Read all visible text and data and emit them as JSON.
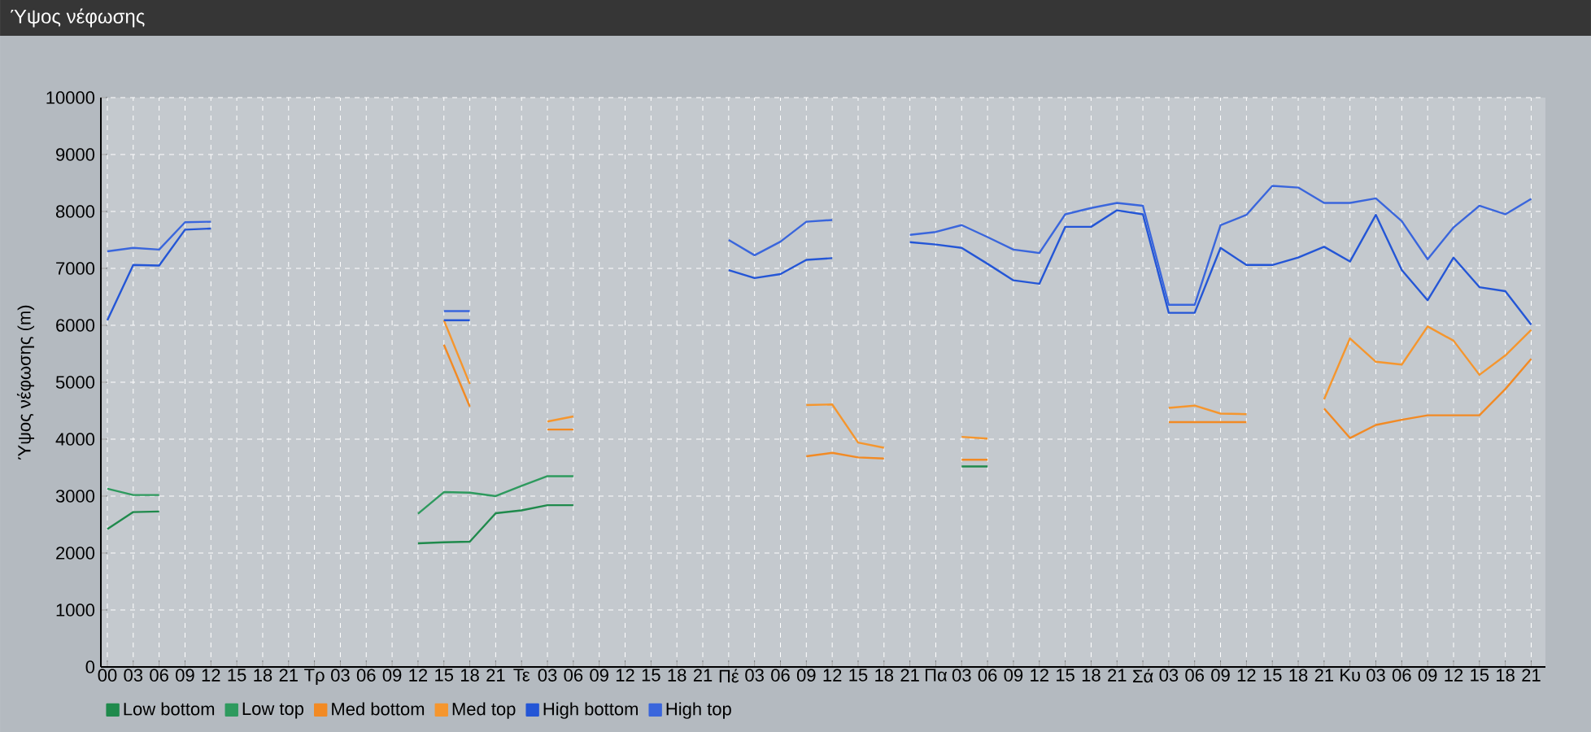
{
  "chart_data": {
    "type": "line",
    "title": "Ύψος νέφωσης",
    "ylabel": "Ύψος νέφωσης (m)",
    "categories": [
      "00",
      "03",
      "06",
      "09",
      "12",
      "15",
      "18",
      "21",
      "Τρ",
      "03",
      "06",
      "09",
      "12",
      "15",
      "18",
      "21",
      "Τε",
      "03",
      "06",
      "09",
      "12",
      "15",
      "18",
      "21",
      "Πέ",
      "03",
      "06",
      "09",
      "12",
      "15",
      "18",
      "21",
      "Πα",
      "03",
      "06",
      "09",
      "12",
      "15",
      "18",
      "21",
      "Σά",
      "03",
      "06",
      "09",
      "12",
      "15",
      "18",
      "21",
      "Κυ",
      "03",
      "06",
      "09",
      "12",
      "15",
      "18",
      "21"
    ],
    "ylim": [
      0,
      10000
    ],
    "yticks": [
      0,
      1000,
      2000,
      3000,
      4000,
      5000,
      6000,
      7000,
      8000,
      9000,
      10000
    ],
    "grid": true,
    "legend": "bottom left",
    "line_style": "solid",
    "series": [
      {
        "name": "Low bottom",
        "color": "#1f8a4c",
        "values": [
          2420,
          2720,
          2730,
          null,
          null,
          null,
          null,
          null,
          null,
          null,
          null,
          null,
          2170,
          2190,
          2200,
          2700,
          2750,
          2840,
          2840,
          null,
          null,
          null,
          null,
          null,
          null,
          null,
          null,
          null,
          null,
          null,
          null,
          null,
          null,
          3520,
          3520,
          null,
          null,
          null,
          null,
          null,
          null,
          null,
          null,
          null,
          null,
          null,
          null,
          null,
          null,
          null,
          null,
          null,
          null,
          null,
          null,
          null
        ]
      },
      {
        "name": "Low top",
        "color": "#2e9a5e",
        "values": [
          3130,
          3020,
          3020,
          null,
          null,
          null,
          null,
          null,
          null,
          null,
          null,
          null,
          2690,
          3070,
          3060,
          3000,
          3180,
          3350,
          3350,
          null,
          null,
          null,
          null,
          null,
          null,
          null,
          null,
          null,
          null,
          null,
          null,
          null,
          null,
          null,
          null,
          null,
          null,
          null,
          null,
          null,
          null,
          null,
          null,
          null,
          null,
          null,
          null,
          null,
          null,
          null,
          null,
          null,
          null,
          null,
          null,
          null
        ]
      },
      {
        "name": "Med bottom",
        "color": "#f28a24",
        "values": [
          null,
          null,
          null,
          null,
          null,
          null,
          null,
          null,
          null,
          null,
          null,
          null,
          null,
          5660,
          4570,
          null,
          null,
          4170,
          4170,
          null,
          null,
          null,
          null,
          null,
          null,
          null,
          null,
          3700,
          3760,
          3680,
          3660,
          null,
          null,
          3640,
          3640,
          null,
          null,
          null,
          null,
          null,
          null,
          4300,
          4300,
          4300,
          4300,
          null,
          null,
          4540,
          4020,
          4250,
          4340,
          4420,
          4420,
          4420,
          4880,
          5410
        ]
      },
      {
        "name": "Med top",
        "color": "#f5962e",
        "values": [
          null,
          null,
          null,
          null,
          null,
          null,
          null,
          null,
          null,
          null,
          null,
          null,
          null,
          6090,
          4970,
          null,
          null,
          4310,
          4400,
          null,
          null,
          null,
          null,
          null,
          null,
          null,
          null,
          4600,
          4610,
          3940,
          3850,
          null,
          null,
          4040,
          4010,
          null,
          null,
          null,
          null,
          null,
          null,
          4550,
          4590,
          4450,
          4440,
          null,
          null,
          4700,
          5770,
          5360,
          5310,
          5980,
          5730,
          5130,
          5470,
          5920
        ]
      },
      {
        "name": "High bottom",
        "color": "#2456d6",
        "values": [
          6090,
          7060,
          7050,
          7680,
          7700,
          null,
          null,
          null,
          null,
          null,
          null,
          null,
          null,
          6090,
          6090,
          null,
          null,
          null,
          null,
          null,
          null,
          null,
          null,
          null,
          6970,
          6830,
          6900,
          7150,
          7180,
          null,
          null,
          7460,
          7420,
          7360,
          7080,
          6790,
          6730,
          7730,
          7730,
          8020,
          7950,
          6220,
          6220,
          7360,
          7060,
          7060,
          7190,
          7380,
          7120,
          7940,
          6970,
          6440,
          7190,
          6670,
          6600,
          6010
        ]
      },
      {
        "name": "High top",
        "color": "#3a66dc",
        "values": [
          7300,
          7360,
          7330,
          7810,
          7820,
          null,
          null,
          null,
          null,
          null,
          null,
          null,
          null,
          6250,
          6250,
          null,
          null,
          null,
          null,
          null,
          null,
          null,
          null,
          null,
          7500,
          7230,
          7470,
          7820,
          7850,
          null,
          null,
          7590,
          7640,
          7760,
          7550,
          7330,
          7270,
          7950,
          8060,
          8150,
          8100,
          6360,
          6360,
          7760,
          7940,
          8450,
          8420,
          8150,
          8150,
          8230,
          7830,
          7160,
          7720,
          8100,
          7950,
          8220
        ]
      }
    ]
  }
}
